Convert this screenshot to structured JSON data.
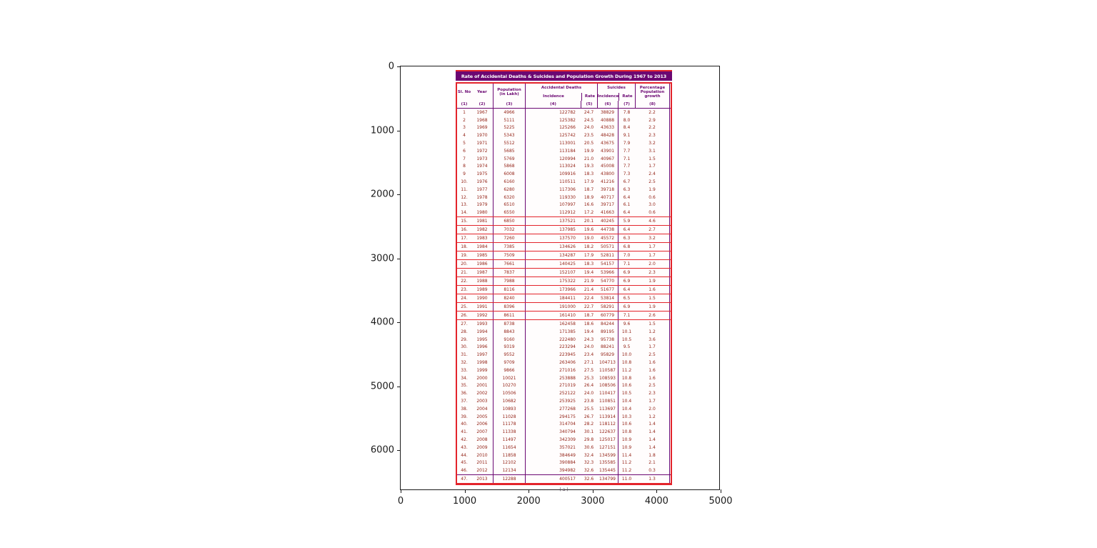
{
  "figure": {
    "y_ticks": [
      "0",
      "1000",
      "2000",
      "3000",
      "4000",
      "5000",
      "6000"
    ],
    "x_ticks": [
      "0",
      "1000",
      "2000",
      "3000",
      "4000",
      "5000"
    ]
  },
  "table": {
    "title": "Rate of Accidental Deaths & Suicides and Population Growth During 1967 to 2013",
    "caption": "( a )",
    "header": {
      "sl_no": "Sl. No",
      "year": "Year",
      "population": "Population (in Lakh)",
      "accidental_group": "Accidental Deaths",
      "suicides_group": "Suicides",
      "incidence": "Incidence",
      "rate": "Rate",
      "growth": "Percentage Population growth",
      "col_numbers": [
        "(1)",
        "(2)",
        "(3)",
        "(4)",
        "(5)",
        "(6)",
        "(7)",
        "(8)"
      ]
    }
  },
  "chart_data": {
    "type": "table",
    "title": "Rate of Accidental Deaths & Suicides and Population Growth During 1967 to 2013",
    "columns": [
      "Sl. No",
      "Year",
      "Population (in Lakh)",
      "Accidental Deaths Incidence",
      "Accidental Deaths Rate",
      "Suicides Incidence",
      "Suicides Rate",
      "Percentage Population growth"
    ],
    "rows": [
      [
        "1",
        "1967",
        "4966",
        "122782",
        "24.7",
        "38829",
        "7.8",
        "2.2"
      ],
      [
        "2",
        "1968",
        "5111",
        "125382",
        "24.5",
        "40888",
        "8.0",
        "2.9"
      ],
      [
        "3",
        "1969",
        "5225",
        "125266",
        "24.0",
        "43633",
        "8.4",
        "2.2"
      ],
      [
        "4",
        "1970",
        "5343",
        "125742",
        "23.5",
        "48428",
        "9.1",
        "2.3"
      ],
      [
        "5",
        "1971",
        "5512",
        "113001",
        "20.5",
        "43675",
        "7.9",
        "3.2"
      ],
      [
        "6",
        "1972",
        "5685",
        "113184",
        "19.9",
        "43901",
        "7.7",
        "3.1"
      ],
      [
        "7",
        "1973",
        "5769",
        "120994",
        "21.0",
        "40967",
        "7.1",
        "1.5"
      ],
      [
        "8",
        "1974",
        "5868",
        "113024",
        "19.3",
        "45008",
        "7.7",
        "1.7"
      ],
      [
        "9",
        "1975",
        "6008",
        "109916",
        "18.3",
        "43800",
        "7.3",
        "2.4"
      ],
      [
        "10.",
        "1976",
        "6160",
        "110511",
        "17.9",
        "41216",
        "6.7",
        "2.5"
      ],
      [
        "11.",
        "1977",
        "6280",
        "117306",
        "18.7",
        "39718",
        "6.3",
        "1.9"
      ],
      [
        "12.",
        "1978",
        "6320",
        "119330",
        "18.9",
        "40717",
        "6.4",
        "0.6"
      ],
      [
        "13.",
        "1979",
        "6510",
        "107997",
        "16.6",
        "39717",
        "6.1",
        "3.0"
      ],
      [
        "14.",
        "1980",
        "6550",
        "112912",
        "17.2",
        "41663",
        "6.4",
        "0.6"
      ],
      [
        "15.",
        "1981",
        "6850",
        "137521",
        "20.1",
        "40245",
        "5.9",
        "4.6"
      ],
      [
        "16.",
        "1982",
        "7032",
        "137985",
        "19.6",
        "44738",
        "6.4",
        "2.7"
      ],
      [
        "17.",
        "1983",
        "7260",
        "137570",
        "19.0",
        "45572",
        "6.3",
        "3.2"
      ],
      [
        "18.",
        "1984",
        "7385",
        "134626",
        "18.2",
        "50571",
        "6.8",
        "1.7"
      ],
      [
        "19.",
        "1985",
        "7509",
        "134287",
        "17.9",
        "52811",
        "7.0",
        "1.7"
      ],
      [
        "20.",
        "1986",
        "7661",
        "140425",
        "18.3",
        "54157",
        "7.1",
        "2.0"
      ],
      [
        "21.",
        "1987",
        "7837",
        "152107",
        "19.4",
        "53966",
        "6.9",
        "2.3"
      ],
      [
        "22.",
        "1988",
        "7988",
        "175322",
        "21.9",
        "54770",
        "6.9",
        "1.9"
      ],
      [
        "23.",
        "1989",
        "8116",
        "173966",
        "21.4",
        "51677",
        "6.4",
        "1.6"
      ],
      [
        "24.",
        "1990",
        "8240",
        "184411",
        "22.4",
        "53814",
        "6.5",
        "1.5"
      ],
      [
        "25.",
        "1991",
        "8396",
        "191000",
        "22.7",
        "58291",
        "6.9",
        "1.9"
      ],
      [
        "26.",
        "1992",
        "8611",
        "161410",
        "18.7",
        "60779",
        "7.1",
        "2.6"
      ],
      [
        "27.",
        "1993",
        "8738",
        "162458",
        "18.6",
        "84244",
        "9.6",
        "1.5"
      ],
      [
        "28.",
        "1994",
        "8843",
        "171385",
        "19.4",
        "89195",
        "10.1",
        "1.2"
      ],
      [
        "29.",
        "1995",
        "9160",
        "222480",
        "24.3",
        "95738",
        "10.5",
        "3.6"
      ],
      [
        "30.",
        "1996",
        "9319",
        "223294",
        "24.0",
        "88241",
        "9.5",
        "1.7"
      ],
      [
        "31.",
        "1997",
        "9552",
        "223945",
        "23.4",
        "95829",
        "10.0",
        "2.5"
      ],
      [
        "32.",
        "1998",
        "9709",
        "263406",
        "27.1",
        "104713",
        "10.8",
        "1.6"
      ],
      [
        "33.",
        "1999",
        "9866",
        "271016",
        "27.5",
        "110587",
        "11.2",
        "1.6"
      ],
      [
        "34.",
        "2000",
        "10021",
        "253888",
        "25.3",
        "108593",
        "10.8",
        "1.6"
      ],
      [
        "35.",
        "2001",
        "10270",
        "271019",
        "26.4",
        "108506",
        "10.6",
        "2.5"
      ],
      [
        "36.",
        "2002",
        "10506",
        "252122",
        "24.0",
        "110417",
        "10.5",
        "2.3"
      ],
      [
        "37.",
        "2003",
        "10682",
        "253925",
        "23.8",
        "110851",
        "10.4",
        "1.7"
      ],
      [
        "38.",
        "2004",
        "10893",
        "277268",
        "25.5",
        "113697",
        "10.4",
        "2.0"
      ],
      [
        "39.",
        "2005",
        "11028",
        "294175",
        "26.7",
        "113914",
        "10.3",
        "1.2"
      ],
      [
        "40.",
        "2006",
        "11178",
        "314704",
        "28.2",
        "118112",
        "10.6",
        "1.4"
      ],
      [
        "41.",
        "2007",
        "11338",
        "340794",
        "30.1",
        "122637",
        "10.8",
        "1.4"
      ],
      [
        "42.",
        "2008",
        "11497",
        "342309",
        "29.8",
        "125017",
        "10.9",
        "1.4"
      ],
      [
        "43.",
        "2009",
        "11654",
        "357021",
        "30.6",
        "127151",
        "10.9",
        "1.4"
      ],
      [
        "44.",
        "2010",
        "11858",
        "384649",
        "32.4",
        "134599",
        "11.4",
        "1.8"
      ],
      [
        "45.",
        "2011",
        "12102",
        "390884",
        "32.3",
        "135585",
        "11.2",
        "2.1"
      ],
      [
        "46.",
        "2012",
        "12134",
        "394982",
        "32.6",
        "135445",
        "11.2",
        "0.3"
      ],
      [
        "47.",
        "2013",
        "12288",
        "400517",
        "32.6",
        "134799",
        "11.0",
        "1.3"
      ]
    ],
    "highlighted_row_range": [
      15,
      26
    ],
    "layout": {
      "x_axis_range": [
        0,
        5000
      ],
      "y_axis_range": [
        0,
        6637
      ],
      "grid": false
    }
  },
  "colors": {
    "title_bar_purple": "#6B0772",
    "border_red": "#E3242B",
    "grid_purple": "#7B2D8B",
    "body_text": "#942418",
    "header_text": "#6B0772"
  }
}
